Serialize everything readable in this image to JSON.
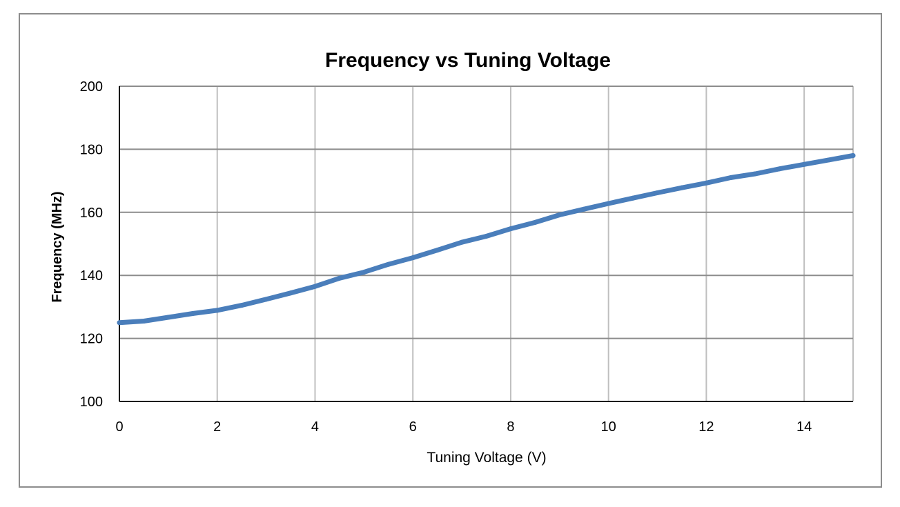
{
  "chart_data": {
    "type": "line",
    "title": "Frequency vs Tuning Voltage",
    "xlabel": "Tuning Voltage (V)",
    "ylabel": "Frequency (MHz)",
    "xlim": [
      0,
      15
    ],
    "ylim": [
      100,
      200
    ],
    "xticks": [
      "0",
      "2",
      "4",
      "6",
      "8",
      "10",
      "12",
      "14"
    ],
    "yticks": [
      "100",
      "120",
      "140",
      "160",
      "180",
      "200"
    ],
    "grid": true,
    "legend": "none",
    "series": [
      {
        "color": "#4a7ebb",
        "x": [
          0,
          0.5,
          1,
          1.5,
          2,
          2.5,
          3,
          3.5,
          4,
          4.5,
          5,
          5.5,
          6,
          6.5,
          7,
          7.5,
          8,
          8.5,
          9,
          9.5,
          10,
          10.5,
          11,
          11.5,
          12,
          12.5,
          13,
          13.5,
          14,
          14.5,
          15
        ],
        "y": [
          125,
          125.5,
          126.7,
          127.9,
          128.9,
          130.5,
          132.4,
          134.4,
          136.5,
          139.1,
          141.0,
          143.5,
          145.6,
          148.0,
          150.5,
          152.4,
          154.8,
          156.8,
          159.2,
          161.0,
          162.8,
          164.5,
          166.2,
          167.8,
          169.3,
          171.0,
          172.2,
          173.8,
          175.2,
          176.6,
          178.0
        ]
      }
    ]
  }
}
